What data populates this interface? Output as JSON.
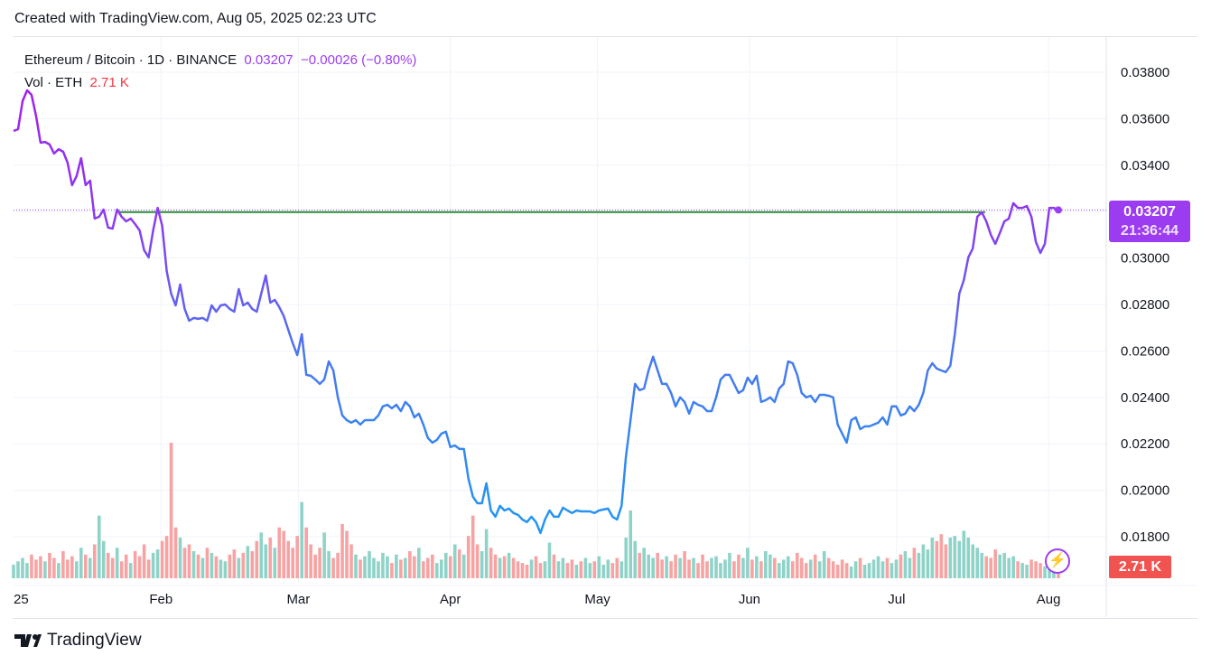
{
  "header": {
    "text": "Created with TradingView.com, Aug 05, 2025 02:23 UTC"
  },
  "legend": {
    "symbol": "Ethereum / Bitcoin · 1D · BINANCE",
    "price": "0.03207",
    "change": "−0.00026 (−0.80%)",
    "vol_label": "Vol · ETH",
    "vol_value": "2.71 K"
  },
  "price_tag": {
    "price": "0.03207",
    "countdown": "21:36:44"
  },
  "vol_tag": "2.71 K",
  "footer": {
    "brand": "TradingView"
  },
  "colors": {
    "up_vol": "#8fd3c8",
    "down_vol": "#f7a3a3",
    "line_top": "#a020f0",
    "line_bottom": "#2196f3",
    "level": "#2e8b3a"
  },
  "chart_data": {
    "type": "line",
    "title": "Ethereum / Bitcoin · 1D · BINANCE",
    "ylim": [
      0.017,
      0.039
    ],
    "y_ticks": [
      "0.03800",
      "0.03600",
      "0.03400",
      "0.03200",
      "0.03000",
      "0.02800",
      "0.02600",
      "0.02400",
      "0.02200",
      "0.02000",
      "0.01800"
    ],
    "y_tick_values": [
      0.038,
      0.036,
      0.034,
      0.032,
      0.03,
      0.028,
      0.026,
      0.024,
      0.022,
      0.02,
      0.018
    ],
    "x_ticks": [
      "25",
      "Feb",
      "Mar",
      "Apr",
      "May",
      "Jun",
      "Jul",
      "Aug"
    ],
    "x_tick_days": [
      0,
      31,
      59,
      90,
      120,
      151,
      181,
      212
    ],
    "x_range_days": [
      1,
      215
    ],
    "horizontal_level": 0.03198,
    "level_span_fraction": [
      0.1,
      0.93
    ],
    "last_price": 0.03207,
    "close": [
      0.03547,
      0.03555,
      0.03676,
      0.03722,
      0.03703,
      0.03613,
      0.03497,
      0.035,
      0.03489,
      0.0345,
      0.03469,
      0.03458,
      0.03411,
      0.03314,
      0.03353,
      0.0343,
      0.03314,
      0.03333,
      0.0317,
      0.03178,
      0.03209,
      0.03131,
      0.03127,
      0.03209,
      0.03178,
      0.03158,
      0.0317,
      0.03146,
      0.03119,
      0.03034,
      0.03003,
      0.03119,
      0.03216,
      0.03139,
      0.02944,
      0.02847,
      0.02796,
      0.02886,
      0.02781,
      0.0273,
      0.02742,
      0.02738,
      0.02742,
      0.0273,
      0.02796,
      0.02769,
      0.02796,
      0.028,
      0.02781,
      0.02769,
      0.02866,
      0.02796,
      0.02808,
      0.02781,
      0.02769,
      0.02847,
      0.02925,
      0.02808,
      0.0282,
      0.02789,
      0.0275,
      0.02691,
      0.02633,
      0.02582,
      0.02672,
      0.02497,
      0.02493,
      0.02477,
      0.02458,
      0.02477,
      0.02555,
      0.02516,
      0.024,
      0.02322,
      0.02302,
      0.02291,
      0.02302,
      0.02283,
      0.02302,
      0.02302,
      0.02302,
      0.02322,
      0.02361,
      0.02368,
      0.02353,
      0.02368,
      0.02341,
      0.0238,
      0.02361,
      0.02314,
      0.0233,
      0.02283,
      0.02225,
      0.02205,
      0.02217,
      0.02244,
      0.02252,
      0.02186,
      0.02193,
      0.02178,
      0.02178,
      0.0205,
      0.01972,
      0.01944,
      0.01944,
      0.0203,
      0.01913,
      0.01886,
      0.01933,
      0.01913,
      0.01921,
      0.01902,
      0.01894,
      0.01874,
      0.01863,
      0.01886,
      0.01863,
      0.01816,
      0.01874,
      0.01913,
      0.01886,
      0.01886,
      0.01925,
      0.01913,
      0.01902,
      0.01913,
      0.01909,
      0.01909,
      0.01909,
      0.01902,
      0.01913,
      0.01917,
      0.01921,
      0.01886,
      0.01874,
      0.01933,
      0.02147,
      0.02302,
      0.02458,
      0.02431,
      0.02438,
      0.02516,
      0.02575,
      0.02516,
      0.02458,
      0.02458,
      0.02419,
      0.02361,
      0.024,
      0.0238,
      0.0233,
      0.0238,
      0.02368,
      0.02361,
      0.02341,
      0.02341,
      0.024,
      0.02477,
      0.02497,
      0.02497,
      0.02458,
      0.02419,
      0.02431,
      0.02485,
      0.02458,
      0.02493,
      0.0238,
      0.02388,
      0.024,
      0.0238,
      0.02438,
      0.02458,
      0.02555,
      0.02547,
      0.02497,
      0.02419,
      0.024,
      0.02407,
      0.0238,
      0.02411,
      0.02411,
      0.02407,
      0.024,
      0.02283,
      0.02244,
      0.02205,
      0.02302,
      0.02314,
      0.02263,
      0.02275,
      0.02275,
      0.02283,
      0.02291,
      0.02314,
      0.02283,
      0.02361,
      0.02361,
      0.02322,
      0.0233,
      0.02361,
      0.02341,
      0.02368,
      0.02419,
      0.02516,
      0.02547,
      0.02524,
      0.02516,
      0.02509,
      0.02536,
      0.02672,
      0.02847,
      0.02905,
      0.03003,
      0.03041,
      0.03178,
      0.03197,
      0.03158,
      0.031,
      0.03061,
      0.03108,
      0.03158,
      0.0317,
      0.03236,
      0.03216,
      0.03216,
      0.03224,
      0.03178,
      0.03069,
      0.03022,
      0.03061,
      0.03216,
      0.03216,
      0.03207
    ],
    "volume_k": [
      8,
      10,
      12,
      9,
      14,
      11,
      13,
      10,
      15,
      12,
      9,
      16,
      11,
      13,
      10,
      18,
      14,
      12,
      20,
      37,
      22,
      15,
      12,
      18,
      10,
      14,
      9,
      16,
      13,
      20,
      11,
      15,
      17,
      22,
      25,
      80,
      30,
      24,
      18,
      20,
      16,
      14,
      12,
      18,
      15,
      13,
      11,
      10,
      14,
      17,
      12,
      15,
      19,
      16,
      22,
      27,
      20,
      24,
      18,
      30,
      28,
      22,
      18,
      25,
      45,
      30,
      20,
      14,
      18,
      27,
      16,
      12,
      15,
      32,
      28,
      20,
      14,
      11,
      13,
      16,
      12,
      10,
      15,
      13,
      9,
      14,
      11,
      12,
      16,
      13,
      18,
      10,
      12,
      14,
      9,
      11,
      15,
      13,
      20,
      17,
      14,
      25,
      37,
      20,
      16,
      29,
      18,
      14,
      12,
      13,
      15,
      12,
      10,
      9,
      8,
      11,
      13,
      9,
      10,
      21,
      14,
      10,
      12,
      9,
      11,
      8,
      10,
      12,
      9,
      10,
      13,
      8,
      11,
      9,
      12,
      10,
      24,
      40,
      22,
      15,
      18,
      14,
      12,
      15,
      11,
      13,
      10,
      14,
      12,
      16,
      11,
      12,
      9,
      14,
      10,
      12,
      13,
      9,
      11,
      15,
      10,
      14,
      12,
      18,
      11,
      13,
      10,
      16,
      14,
      12,
      9,
      11,
      13,
      10,
      15,
      12,
      9,
      11,
      14,
      10,
      16,
      12,
      10,
      8,
      11,
      9,
      7,
      10,
      12,
      8,
      9,
      11,
      13,
      10,
      12,
      9,
      11,
      14,
      16,
      12,
      18,
      15,
      20,
      17,
      24,
      22,
      26,
      20,
      24,
      25,
      22,
      28,
      24,
      20,
      18,
      15,
      13,
      12,
      17,
      14,
      15,
      12,
      13,
      10,
      9,
      8,
      11,
      10,
      9,
      7,
      5,
      4,
      2.71
    ]
  }
}
